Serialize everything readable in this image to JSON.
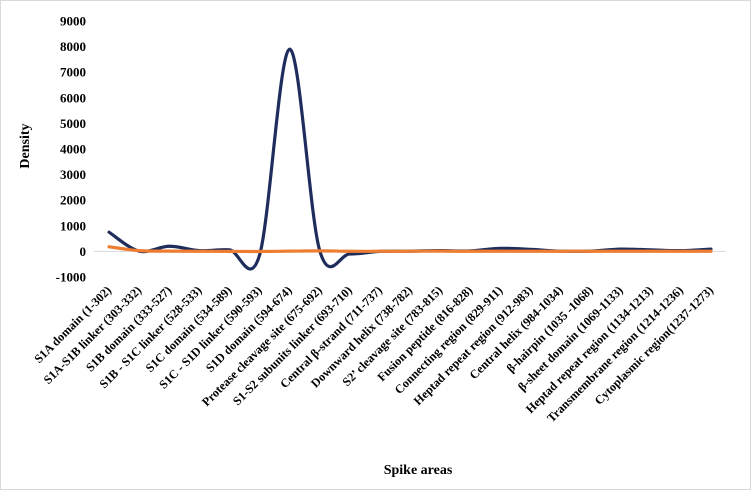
{
  "chart_data": {
    "type": "line",
    "title": "",
    "xlabel": "Spike areas",
    "ylabel": "Density",
    "ylim": [
      -1000,
      9000
    ],
    "yticks": [
      -1000,
      0,
      1000,
      2000,
      3000,
      4000,
      5000,
      6000,
      7000,
      8000,
      9000
    ],
    "ytick_labels": [
      "-1000",
      "0",
      "1000",
      "2000",
      "3000",
      "4000",
      "5000",
      "6000",
      "7000",
      "8000",
      "9000"
    ],
    "grid": false,
    "legend": "none",
    "categories": [
      "S1A  domain (1-302)",
      "S1A-S1B linker (303-332)",
      "S1B domain (333-527)",
      "S1B - S1C linker (528-533)",
      "S1C domain (534-589)",
      "S1C - S1D linker (590-593)",
      "S1D domain (594-674)",
      "Protease cleavage site (675-692)",
      "S1-S2 subunits linker (693-710)",
      "Central β-strand (711-737)",
      "Downward helix (738-782)",
      "S2’ cleavage site (783-815)",
      "Fusion peptide (816-828)",
      "Connecting region (829-911)",
      "Heptad repeat region (912-983)",
      "Central helix (984-1034)",
      "β-hairpin (1035 -1068)",
      "β-sheet domain (1069-1133)",
      "Heptad repeat region (1134-1213)",
      "Transmembrane region (1214-1236)",
      "Cytoplasmic region(1237-1273)"
    ],
    "series": [
      {
        "color": "#1f2d5c",
        "values": [
          750,
          10,
          200,
          30,
          60,
          -150,
          7900,
          30,
          -100,
          0,
          10,
          30,
          20,
          120,
          80,
          10,
          10,
          90,
          60,
          30,
          90
        ]
      },
      {
        "color": "#ed7d31",
        "values": [
          180,
          30,
          10,
          5,
          0,
          -5,
          10,
          20,
          5,
          5,
          5,
          10,
          5,
          5,
          5,
          5,
          5,
          5,
          5,
          5,
          5
        ]
      }
    ]
  }
}
